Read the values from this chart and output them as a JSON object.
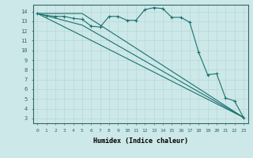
{
  "xlabel": "Humidex (Indice chaleur)",
  "background_color": "#cde8e8",
  "grid_color": "#aacccc",
  "line_color": "#1a7070",
  "xlim": [
    -0.5,
    23.5
  ],
  "ylim": [
    2.5,
    14.7
  ],
  "yticks": [
    3,
    4,
    5,
    6,
    7,
    8,
    9,
    10,
    11,
    12,
    13,
    14
  ],
  "xticks": [
    0,
    1,
    2,
    3,
    4,
    5,
    6,
    7,
    8,
    9,
    10,
    11,
    12,
    13,
    14,
    15,
    16,
    17,
    18,
    19,
    20,
    21,
    22,
    23
  ],
  "series": [
    {
      "x": [
        0,
        1,
        2,
        3,
        4,
        5,
        6,
        7,
        8,
        9,
        10,
        11,
        12,
        13,
        14,
        15,
        16,
        17,
        18,
        19,
        20,
        21,
        22,
        23
      ],
      "y": [
        13.8,
        13.6,
        13.5,
        13.5,
        13.3,
        13.2,
        12.5,
        12.4,
        13.5,
        13.5,
        13.1,
        13.1,
        14.2,
        14.4,
        14.3,
        13.4,
        13.4,
        12.9,
        9.8,
        7.5,
        7.6,
        5.1,
        4.8,
        3.1
      ],
      "marker": true
    },
    {
      "x": [
        0,
        5,
        23
      ],
      "y": [
        13.8,
        13.8,
        3.1
      ],
      "marker": false
    },
    {
      "x": [
        0,
        5,
        23
      ],
      "y": [
        13.8,
        12.6,
        3.1
      ],
      "marker": false
    },
    {
      "x": [
        0,
        5,
        23
      ],
      "y": [
        13.8,
        11.5,
        3.1
      ],
      "marker": false
    }
  ]
}
